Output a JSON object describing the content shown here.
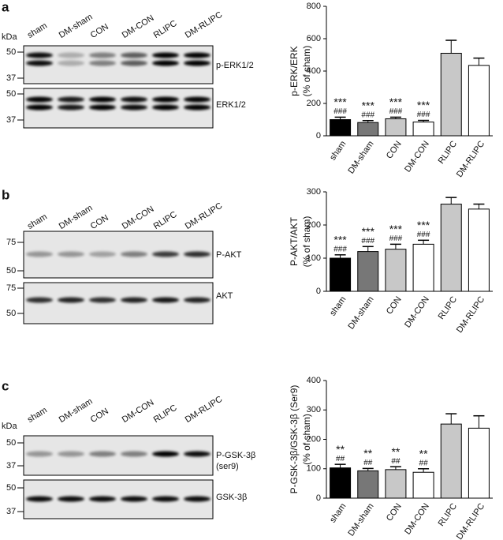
{
  "panels": [
    {
      "letter": "a",
      "kda": "kDa",
      "lanes": [
        "sham",
        "DM-sham",
        "CON",
        "DM-CON",
        "RLIPC",
        "DM-RLIPC"
      ],
      "blots": [
        {
          "markers": [
            "50",
            "37"
          ],
          "labels": [
            "p-ERK1/2"
          ]
        },
        {
          "markers": [
            "50",
            "37"
          ],
          "labels": [
            "ERK1/2"
          ]
        }
      ]
    },
    {
      "letter": "b",
      "lanes": [
        "sham",
        "DM-sham",
        "CON",
        "DM-CON",
        "RLIPC",
        "DM-RLIPC"
      ],
      "blots": [
        {
          "markers": [
            "75",
            "50"
          ],
          "labels": [
            "P-AKT"
          ]
        },
        {
          "markers": [
            "75",
            "50"
          ],
          "labels": [
            "AKT"
          ]
        }
      ]
    },
    {
      "letter": "c",
      "kda": "kDa",
      "lanes": [
        "sham",
        "DM-sham",
        "CON",
        "DM-CON",
        "RLIPC",
        "DM-RLIPC"
      ],
      "blots": [
        {
          "markers": [
            "50",
            "37"
          ],
          "labels": [
            "P-GSK-3β",
            "(ser9)"
          ]
        },
        {
          "markers": [
            "50",
            "37"
          ],
          "labels": [
            "GSK-3β"
          ]
        }
      ]
    }
  ],
  "chart_data": [
    {
      "type": "bar",
      "ylabel": [
        "p-ERK/ERK",
        "(% of sham)"
      ],
      "categories": [
        "sham",
        "DM-sham",
        "CON",
        "DM-CON",
        "RLIPC",
        "DM-RLIPC"
      ],
      "values": [
        100,
        82,
        105,
        85,
        510,
        435
      ],
      "errors": [
        15,
        12,
        10,
        10,
        80,
        45
      ],
      "colors": [
        "#000000",
        "#777777",
        "#c8c8c8",
        "#ffffff",
        "#c8c8c8",
        "#ffffff"
      ],
      "significance": [
        [
          "***",
          "###"
        ],
        [
          "***",
          "###"
        ],
        [
          "***",
          "###"
        ],
        [
          "***",
          "###"
        ]
      ],
      "ylim": [
        0,
        800
      ],
      "yticks": [
        0,
        200,
        400,
        600,
        800
      ]
    },
    {
      "type": "bar",
      "ylabel": [
        "P-AKT/AKT",
        "(% of sham)"
      ],
      "categories": [
        "sham",
        "DM-sham",
        "CON",
        "DM-CON",
        "RLIPC",
        "DM-RLIPC"
      ],
      "values": [
        100,
        120,
        127,
        142,
        263,
        248
      ],
      "errors": [
        10,
        15,
        15,
        12,
        20,
        15
      ],
      "colors": [
        "#000000",
        "#777777",
        "#c8c8c8",
        "#ffffff",
        "#c8c8c8",
        "#ffffff"
      ],
      "significance": [
        [
          "***",
          "###"
        ],
        [
          "***",
          "###"
        ],
        [
          "***",
          "###"
        ],
        [
          "***",
          "###"
        ]
      ],
      "ylim": [
        0,
        300
      ],
      "yticks": [
        0,
        100,
        200,
        300
      ]
    },
    {
      "type": "bar",
      "ylabel": [
        "P-GSK-3β/GSK-3β (Ser9)",
        "(% of sham)"
      ],
      "categories": [
        "sham",
        "DM-sham",
        "CON",
        "DM-CON",
        "RLIPC",
        "DM-RLIPC"
      ],
      "values": [
        103,
        93,
        97,
        88,
        252,
        238
      ],
      "errors": [
        12,
        8,
        10,
        12,
        35,
        42
      ],
      "colors": [
        "#000000",
        "#777777",
        "#c8c8c8",
        "#ffffff",
        "#c8c8c8",
        "#ffffff"
      ],
      "significance": [
        [
          "**",
          "##"
        ],
        [
          "**",
          "##"
        ],
        [
          "**",
          "##"
        ],
        [
          "**",
          "##"
        ]
      ],
      "ylim": [
        0,
        400
      ],
      "yticks": [
        0,
        100,
        200,
        300,
        400
      ]
    }
  ]
}
